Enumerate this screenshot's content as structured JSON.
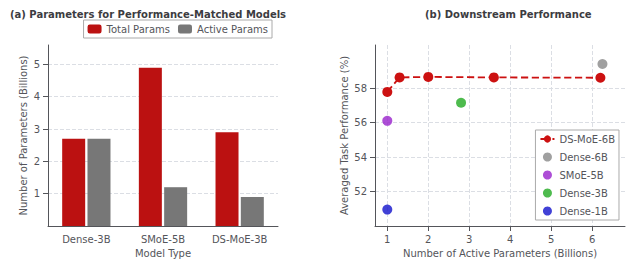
{
  "chart_data": [
    {
      "type": "bar",
      "title": "(a) Parameters for Performance-Matched Models",
      "xlabel": "Model Type",
      "ylabel": "Number of Parameters (Billions)",
      "categories": [
        "Dense-3B",
        "SMoE-5B",
        "DS-MoE-3B"
      ],
      "series": [
        {
          "name": "Total Params",
          "color": "#bb1111",
          "values": [
            2.7,
            4.9,
            2.9
          ]
        },
        {
          "name": "Active Params",
          "color": "#777777",
          "values": [
            2.7,
            1.2,
            0.9
          ]
        }
      ],
      "ylim": [
        0,
        5.6
      ],
      "yticks": [
        1,
        2,
        3,
        4,
        5
      ],
      "grid": true,
      "legend": "upper right"
    },
    {
      "type": "scatter",
      "title": "(b) Downstream Performance",
      "xlabel": "Number of Active Parameters (Billions)",
      "ylabel": "Averaged Task Performance (%)",
      "series": [
        {
          "name": "DS-MoE-6B",
          "type": "line",
          "line_style": "dashed",
          "marker": "circle",
          "color": "#cc1111",
          "x": [
            1.0,
            1.3,
            2.0,
            3.6,
            6.2
          ],
          "values": [
            57.78,
            58.62,
            58.65,
            58.62,
            58.6
          ]
        },
        {
          "name": "Dense-6B",
          "type": "scatter",
          "marker": "circle",
          "color": "#888888",
          "x": [
            6.25
          ],
          "values": [
            59.4
          ]
        },
        {
          "name": "SMoE-5B",
          "type": "scatter",
          "marker": "circle",
          "color": "#9922cc",
          "x": [
            1.0
          ],
          "values": [
            56.1
          ]
        },
        {
          "name": "Dense-3B",
          "type": "scatter",
          "marker": "circle",
          "color": "#22aa22",
          "x": [
            2.8
          ],
          "values": [
            57.15
          ]
        },
        {
          "name": "Dense-1B",
          "type": "scatter",
          "marker": "circle",
          "color": "#1111cc",
          "x": [
            1.0
          ],
          "values": [
            50.95
          ]
        }
      ],
      "xlim": [
        0.7,
        6.8
      ],
      "xticks": [
        1,
        2,
        3,
        4,
        5,
        6
      ],
      "ylim": [
        50.0,
        60.5
      ],
      "yticks": [
        52,
        54,
        56,
        58
      ],
      "grid": true,
      "legend": "lower right"
    }
  ]
}
